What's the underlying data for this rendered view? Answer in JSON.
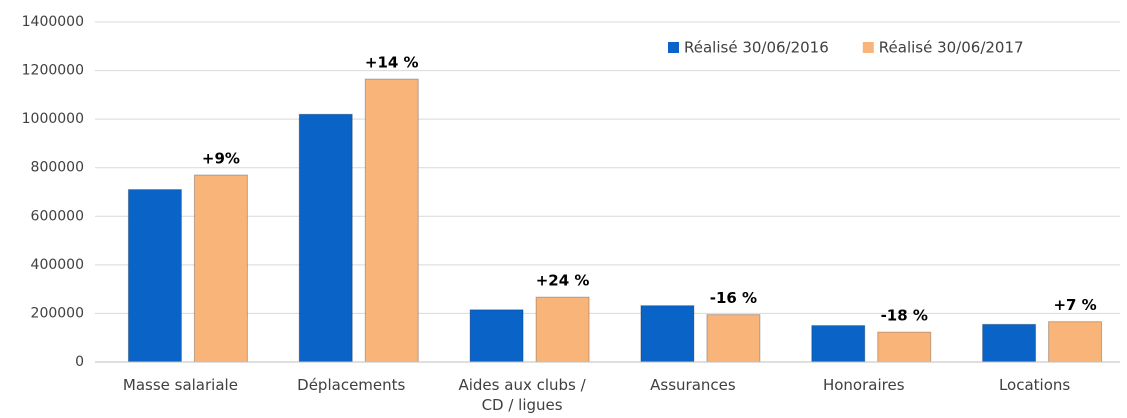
{
  "chart_data": {
    "type": "bar",
    "categories": [
      "Masse salariale",
      "Déplacements",
      "Aides aux clubs / CD / ligues",
      "Assurances",
      "Honoraires",
      "Locations"
    ],
    "series": [
      {
        "name": "Réalisé 30/06/2016",
        "color": "#0a64c8",
        "values": [
          710000,
          1020000,
          215000,
          232000,
          150000,
          155000
        ]
      },
      {
        "name": "Réalisé 30/06/2017",
        "color": "#f9b47a",
        "values": [
          770000,
          1165000,
          267000,
          195000,
          123000,
          166000
        ]
      }
    ],
    "annotations": [
      "+9%",
      "+14 %",
      "+24 %",
      "-16 %",
      "-18 %",
      "+7 %"
    ],
    "ylim": [
      0,
      1400000
    ],
    "yticks": [
      0,
      200000,
      400000,
      600000,
      800000,
      1000000,
      1200000,
      1400000
    ],
    "grid": true,
    "legend": "top-right"
  }
}
